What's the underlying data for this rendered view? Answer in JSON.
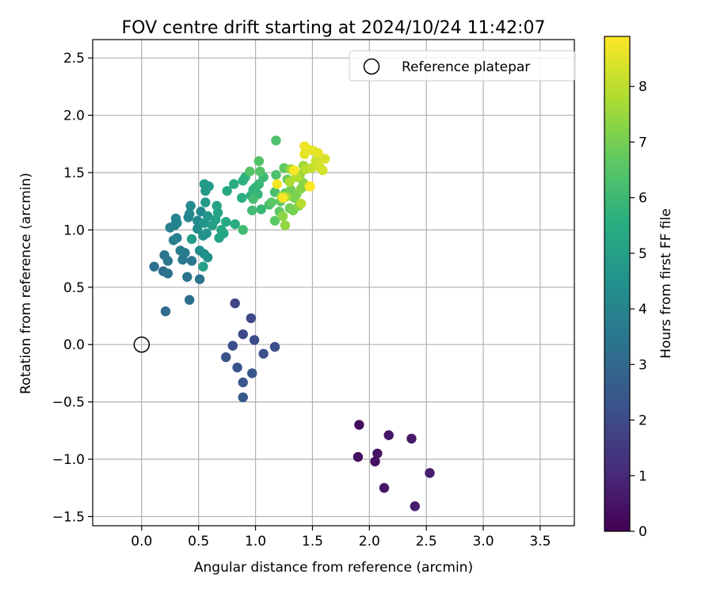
{
  "chart_data": {
    "type": "scatter",
    "title": "FOV centre drift starting at 2024/10/24 11:42:07",
    "xlabel": "Angular distance from reference (arcmin)",
    "ylabel": "Rotation from reference (arcmin)",
    "xlim": [
      -0.43,
      3.8
    ],
    "ylim": [
      -1.58,
      2.66
    ],
    "xticks": [
      0.0,
      0.5,
      1.0,
      1.5,
      2.0,
      2.5,
      3.0,
      3.5
    ],
    "xtick_labels": [
      "0.0",
      "0.5",
      "1.0",
      "1.5",
      "2.0",
      "2.5",
      "3.0",
      "3.5"
    ],
    "yticks": [
      -1.5,
      -1.0,
      -0.5,
      0.0,
      0.5,
      1.0,
      1.5,
      2.0,
      2.5
    ],
    "ytick_labels": [
      "−1.5",
      "−1.0",
      "−0.5",
      "0.0",
      "0.5",
      "1.0",
      "1.5",
      "2.0",
      "2.5"
    ],
    "grid": true,
    "legend": {
      "placement": "top-right",
      "entries": [
        "Reference platepar"
      ]
    },
    "reference_point": {
      "x": 0.0,
      "y": 0.0
    },
    "colorbar": {
      "label": "Hours from first FF file",
      "colormap": "viridis",
      "range": [
        0,
        8.9
      ],
      "ticks": [
        0,
        1,
        2,
        3,
        4,
        5,
        6,
        7,
        8
      ],
      "tick_labels": [
        "0",
        "1",
        "2",
        "3",
        "4",
        "5",
        "6",
        "7",
        "8"
      ]
    },
    "points": [
      {
        "x": 1.91,
        "y": -0.7,
        "h": 0.3
      },
      {
        "x": 1.9,
        "y": -0.98,
        "h": 0.35
      },
      {
        "x": 2.05,
        "y": -1.02,
        "h": 0.4
      },
      {
        "x": 2.07,
        "y": -0.95,
        "h": 0.45
      },
      {
        "x": 2.17,
        "y": -0.79,
        "h": 0.5
      },
      {
        "x": 2.13,
        "y": -1.25,
        "h": 0.55
      },
      {
        "x": 2.37,
        "y": -0.82,
        "h": 0.6
      },
      {
        "x": 2.4,
        "y": -1.41,
        "h": 0.7
      },
      {
        "x": 2.53,
        "y": -1.12,
        "h": 0.75
      },
      {
        "x": 0.82,
        "y": 0.36,
        "h": 1.9
      },
      {
        "x": 0.96,
        "y": 0.23,
        "h": 1.95
      },
      {
        "x": 0.89,
        "y": 0.09,
        "h": 2.0
      },
      {
        "x": 0.99,
        "y": 0.04,
        "h": 2.05
      },
      {
        "x": 0.8,
        "y": -0.01,
        "h": 2.1
      },
      {
        "x": 1.17,
        "y": -0.02,
        "h": 2.15
      },
      {
        "x": 1.07,
        "y": -0.08,
        "h": 2.2
      },
      {
        "x": 0.74,
        "y": -0.11,
        "h": 2.25
      },
      {
        "x": 0.84,
        "y": -0.2,
        "h": 2.3
      },
      {
        "x": 0.97,
        "y": -0.25,
        "h": 2.35
      },
      {
        "x": 0.89,
        "y": -0.33,
        "h": 2.4
      },
      {
        "x": 0.89,
        "y": -0.46,
        "h": 2.45
      },
      {
        "x": 0.21,
        "y": 0.29,
        "h": 3.1
      },
      {
        "x": 0.42,
        "y": 0.39,
        "h": 3.15
      },
      {
        "x": 0.11,
        "y": 0.68,
        "h": 3.2
      },
      {
        "x": 0.19,
        "y": 0.64,
        "h": 3.25
      },
      {
        "x": 0.23,
        "y": 0.62,
        "h": 3.3
      },
      {
        "x": 0.4,
        "y": 0.59,
        "h": 3.35
      },
      {
        "x": 0.51,
        "y": 0.57,
        "h": 3.4
      },
      {
        "x": 0.2,
        "y": 0.78,
        "h": 3.45
      },
      {
        "x": 0.23,
        "y": 0.73,
        "h": 3.5
      },
      {
        "x": 0.36,
        "y": 0.74,
        "h": 3.55
      },
      {
        "x": 0.44,
        "y": 0.73,
        "h": 3.6
      },
      {
        "x": 0.34,
        "y": 0.82,
        "h": 3.65
      },
      {
        "x": 0.38,
        "y": 0.8,
        "h": 3.7
      },
      {
        "x": 0.28,
        "y": 0.91,
        "h": 3.75
      },
      {
        "x": 0.31,
        "y": 0.93,
        "h": 3.8
      },
      {
        "x": 0.25,
        "y": 1.02,
        "h": 3.85
      },
      {
        "x": 0.29,
        "y": 1.04,
        "h": 3.9
      },
      {
        "x": 0.31,
        "y": 1.06,
        "h": 3.95
      },
      {
        "x": 0.3,
        "y": 1.1,
        "h": 4.0
      },
      {
        "x": 0.41,
        "y": 1.11,
        "h": 4.05
      },
      {
        "x": 0.42,
        "y": 1.14,
        "h": 4.1
      },
      {
        "x": 0.43,
        "y": 1.21,
        "h": 4.15
      },
      {
        "x": 0.49,
        "y": 1.08,
        "h": 4.2
      },
      {
        "x": 0.52,
        "y": 1.16,
        "h": 4.25
      },
      {
        "x": 0.49,
        "y": 1.01,
        "h": 4.3
      },
      {
        "x": 0.51,
        "y": 0.82,
        "h": 4.35
      },
      {
        "x": 0.55,
        "y": 0.79,
        "h": 4.4
      },
      {
        "x": 0.58,
        "y": 0.76,
        "h": 4.45
      },
      {
        "x": 0.54,
        "y": 0.95,
        "h": 4.5
      },
      {
        "x": 0.57,
        "y": 0.97,
        "h": 4.55
      },
      {
        "x": 0.55,
        "y": 1.06,
        "h": 4.6
      },
      {
        "x": 0.58,
        "y": 1.12,
        "h": 4.65
      },
      {
        "x": 0.56,
        "y": 1.24,
        "h": 4.7
      },
      {
        "x": 0.56,
        "y": 1.34,
        "h": 4.75
      },
      {
        "x": 0.55,
        "y": 1.4,
        "h": 4.8
      },
      {
        "x": 0.59,
        "y": 1.38,
        "h": 4.85
      },
      {
        "x": 0.44,
        "y": 0.92,
        "h": 4.9
      },
      {
        "x": 0.54,
        "y": 0.68,
        "h": 4.95
      },
      {
        "x": 0.62,
        "y": 1.04,
        "h": 5.0
      },
      {
        "x": 0.65,
        "y": 1.09,
        "h": 5.05
      },
      {
        "x": 0.66,
        "y": 1.21,
        "h": 5.1
      },
      {
        "x": 0.67,
        "y": 1.15,
        "h": 5.15
      },
      {
        "x": 0.68,
        "y": 0.93,
        "h": 5.2
      },
      {
        "x": 0.7,
        "y": 1.0,
        "h": 5.25
      },
      {
        "x": 0.72,
        "y": 0.97,
        "h": 5.3
      },
      {
        "x": 0.75,
        "y": 1.34,
        "h": 5.35
      },
      {
        "x": 0.74,
        "y": 1.07,
        "h": 5.4
      },
      {
        "x": 0.82,
        "y": 1.05,
        "h": 5.45
      },
      {
        "x": 0.81,
        "y": 1.4,
        "h": 5.5
      },
      {
        "x": 0.88,
        "y": 1.28,
        "h": 5.55
      },
      {
        "x": 0.89,
        "y": 1.43,
        "h": 5.6
      },
      {
        "x": 0.91,
        "y": 1.46,
        "h": 5.65
      },
      {
        "x": 0.96,
        "y": 1.3,
        "h": 5.7
      },
      {
        "x": 0.98,
        "y": 1.35,
        "h": 5.75
      },
      {
        "x": 1.0,
        "y": 1.37,
        "h": 5.8
      },
      {
        "x": 1.02,
        "y": 1.31,
        "h": 5.85
      },
      {
        "x": 1.03,
        "y": 1.4,
        "h": 5.9
      },
      {
        "x": 1.05,
        "y": 1.18,
        "h": 5.95
      },
      {
        "x": 1.07,
        "y": 1.46,
        "h": 6.0
      },
      {
        "x": 0.89,
        "y": 1.0,
        "h": 6.05
      },
      {
        "x": 0.97,
        "y": 1.17,
        "h": 6.1
      },
      {
        "x": 0.98,
        "y": 1.27,
        "h": 6.15
      },
      {
        "x": 1.12,
        "y": 1.22,
        "h": 6.2
      },
      {
        "x": 1.17,
        "y": 1.33,
        "h": 6.25
      },
      {
        "x": 1.18,
        "y": 1.48,
        "h": 6.3
      },
      {
        "x": 1.18,
        "y": 1.78,
        "h": 6.35
      },
      {
        "x": 1.03,
        "y": 1.6,
        "h": 6.4
      },
      {
        "x": 1.04,
        "y": 1.51,
        "h": 6.45
      },
      {
        "x": 0.95,
        "y": 1.51,
        "h": 6.5
      },
      {
        "x": 1.14,
        "y": 1.24,
        "h": 6.55
      },
      {
        "x": 1.17,
        "y": 1.08,
        "h": 6.6
      },
      {
        "x": 1.21,
        "y": 1.16,
        "h": 6.65
      },
      {
        "x": 1.22,
        "y": 1.25,
        "h": 6.7
      },
      {
        "x": 1.25,
        "y": 1.54,
        "h": 6.75
      },
      {
        "x": 1.26,
        "y": 1.32,
        "h": 6.8
      },
      {
        "x": 1.28,
        "y": 1.44,
        "h": 6.85
      },
      {
        "x": 1.3,
        "y": 1.19,
        "h": 6.9
      },
      {
        "x": 1.31,
        "y": 1.35,
        "h": 6.95
      },
      {
        "x": 1.33,
        "y": 1.17,
        "h": 7.0
      },
      {
        "x": 1.34,
        "y": 1.28,
        "h": 7.05
      },
      {
        "x": 1.36,
        "y": 1.31,
        "h": 7.1
      },
      {
        "x": 1.37,
        "y": 1.46,
        "h": 7.15
      },
      {
        "x": 1.38,
        "y": 1.21,
        "h": 7.2
      },
      {
        "x": 1.4,
        "y": 1.36,
        "h": 7.25
      },
      {
        "x": 1.42,
        "y": 1.41,
        "h": 7.3
      },
      {
        "x": 1.24,
        "y": 1.12,
        "h": 7.35
      },
      {
        "x": 1.26,
        "y": 1.04,
        "h": 7.4
      },
      {
        "x": 1.31,
        "y": 1.53,
        "h": 7.45
      },
      {
        "x": 1.39,
        "y": 1.48,
        "h": 7.5
      },
      {
        "x": 1.42,
        "y": 1.56,
        "h": 7.55
      },
      {
        "x": 1.23,
        "y": 1.29,
        "h": 7.6
      },
      {
        "x": 1.27,
        "y": 1.29,
        "h": 7.7
      },
      {
        "x": 1.3,
        "y": 1.42,
        "h": 7.75
      },
      {
        "x": 1.33,
        "y": 1.52,
        "h": 7.8
      },
      {
        "x": 1.36,
        "y": 1.46,
        "h": 7.85
      },
      {
        "x": 1.4,
        "y": 1.23,
        "h": 7.9
      },
      {
        "x": 1.44,
        "y": 1.53,
        "h": 7.95
      },
      {
        "x": 1.47,
        "y": 1.38,
        "h": 8.0
      },
      {
        "x": 1.49,
        "y": 1.54,
        "h": 8.1
      },
      {
        "x": 1.53,
        "y": 1.6,
        "h": 8.2
      },
      {
        "x": 1.56,
        "y": 1.55,
        "h": 8.3
      },
      {
        "x": 1.59,
        "y": 1.52,
        "h": 8.35
      },
      {
        "x": 1.61,
        "y": 1.62,
        "h": 8.4
      },
      {
        "x": 1.51,
        "y": 1.69,
        "h": 8.5
      },
      {
        "x": 1.55,
        "y": 1.67,
        "h": 8.55
      },
      {
        "x": 1.43,
        "y": 1.66,
        "h": 8.6
      },
      {
        "x": 1.47,
        "y": 1.7,
        "h": 8.65
      },
      {
        "x": 1.43,
        "y": 1.73,
        "h": 8.7
      },
      {
        "x": 1.19,
        "y": 1.4,
        "h": 8.75
      },
      {
        "x": 1.24,
        "y": 1.28,
        "h": 8.8
      },
      {
        "x": 1.34,
        "y": 1.52,
        "h": 8.85
      },
      {
        "x": 1.48,
        "y": 1.38,
        "h": 8.9
      }
    ]
  }
}
